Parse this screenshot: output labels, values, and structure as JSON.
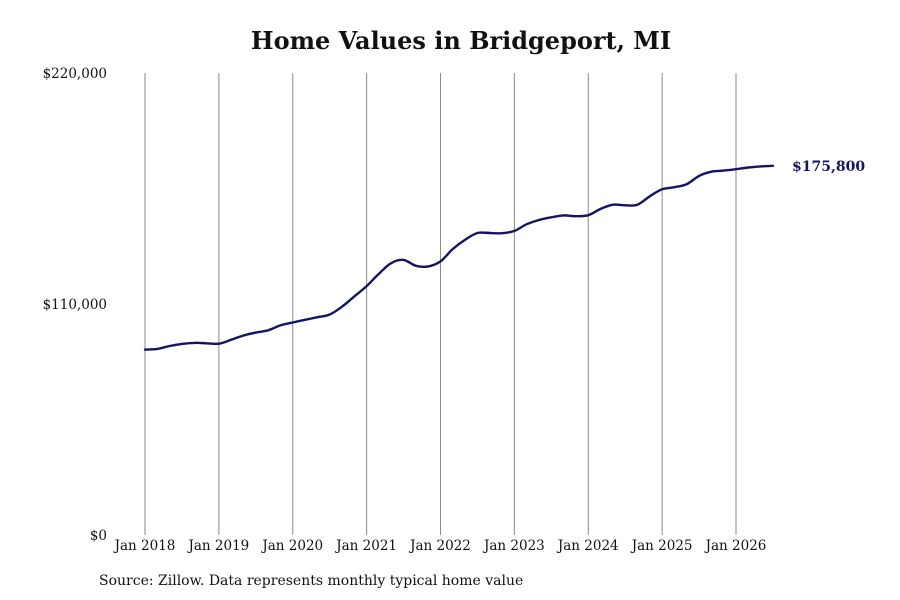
{
  "chart_data": {
    "type": "line",
    "title": "Home Values in Bridgeport, MI",
    "source": "Source: Zillow. Data represents monthly typical home value",
    "xlabel": "",
    "ylabel": "",
    "ylim": [
      0,
      220000
    ],
    "yticks": [
      {
        "value": 0,
        "label": "$0"
      },
      {
        "value": 110000,
        "label": "$110,000"
      },
      {
        "value": 220000,
        "label": "$220,000"
      }
    ],
    "xticks": [
      {
        "value": "2018-01",
        "label": "Jan 2018"
      },
      {
        "value": "2019-01",
        "label": "Jan 2019"
      },
      {
        "value": "2020-01",
        "label": "Jan 2020"
      },
      {
        "value": "2021-01",
        "label": "Jan 2021"
      },
      {
        "value": "2022-01",
        "label": "Jan 2022"
      },
      {
        "value": "2023-01",
        "label": "Jan 2023"
      },
      {
        "value": "2024-01",
        "label": "Jan 2024"
      },
      {
        "value": "2025-01",
        "label": "Jan 2025"
      },
      {
        "value": "2026-01",
        "label": "Jan 2026"
      }
    ],
    "grid": "vertical",
    "line_color": "#141460",
    "end_label": "$175,800",
    "series": [
      {
        "name": "",
        "x": [
          "2018-01",
          "2018-03",
          "2018-05",
          "2018-07",
          "2018-09",
          "2018-11",
          "2019-01",
          "2019-03",
          "2019-05",
          "2019-07",
          "2019-09",
          "2019-11",
          "2020-01",
          "2020-03",
          "2020-05",
          "2020-07",
          "2020-09",
          "2020-11",
          "2021-01",
          "2021-03",
          "2021-05",
          "2021-07",
          "2021-09",
          "2021-11",
          "2022-01",
          "2022-03",
          "2022-05",
          "2022-07",
          "2022-09",
          "2022-11",
          "2023-01",
          "2023-03",
          "2023-05",
          "2023-07",
          "2023-09",
          "2023-11",
          "2024-01",
          "2024-03",
          "2024-05",
          "2024-07",
          "2024-09",
          "2024-11",
          "2025-01",
          "2025-03",
          "2025-05",
          "2025-07",
          "2025-09",
          "2025-11",
          "2026-01",
          "2026-03",
          "2026-05",
          "2026-07"
        ],
        "values": [
          88300,
          88600,
          90000,
          91000,
          91500,
          91300,
          91100,
          93000,
          95000,
          96400,
          97500,
          99800,
          101200,
          102500,
          103700,
          105000,
          108700,
          113600,
          118500,
          124400,
          129500,
          131000,
          128200,
          127900,
          130300,
          136200,
          140600,
          143800,
          143800,
          143700,
          144800,
          148000,
          150000,
          151300,
          152200,
          151800,
          152300,
          155300,
          157300,
          157000,
          157300,
          161300,
          164600,
          165600,
          167100,
          171000,
          173000,
          173500,
          174200,
          175000,
          175500,
          175800
        ]
      }
    ]
  }
}
